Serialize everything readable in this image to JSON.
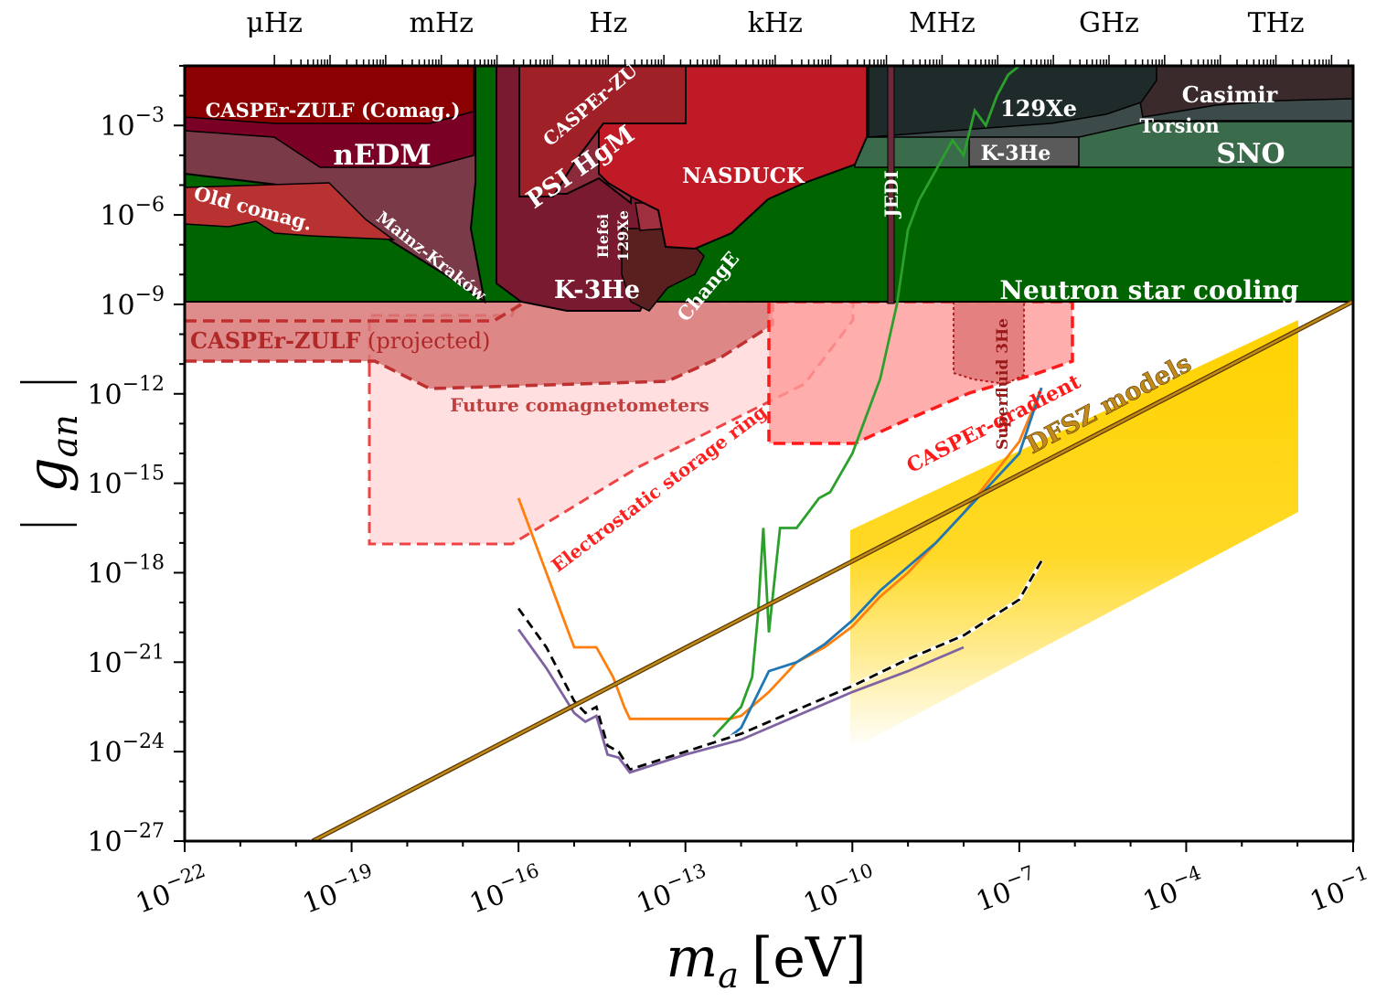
{
  "chart_data": {
    "type": "line",
    "xlabel_var": "m",
    "xlabel_sub": "a",
    "xlabel_unit": "[eV]",
    "ylabel_var": "g",
    "ylabel_sub": "an",
    "x_scale": "log",
    "y_scale": "log",
    "xlim": [
      1e-22,
      0.1
    ],
    "ylim": [
      1e-27,
      0.1
    ],
    "x_tick_exponents": [
      "−22",
      "−19",
      "−16",
      "−13",
      "−10",
      "−7",
      "−4",
      "−1"
    ],
    "y_tick_exponents": [
      "−3",
      "−6",
      "−9",
      "−12",
      "−15",
      "−18",
      "−21",
      "−24",
      "−27"
    ],
    "top_axis_labels": [
      {
        "text": "μHz",
        "mass_eV": 4.1e-21
      },
      {
        "text": "mHz",
        "mass_eV": 4.1e-18
      },
      {
        "text": "Hz",
        "mass_eV": 4.1e-15
      },
      {
        "text": "kHz",
        "mass_eV": 4.1e-12
      },
      {
        "text": "MHz",
        "mass_eV": 4.1e-09
      },
      {
        "text": "GHz",
        "mass_eV": 4.1e-06
      },
      {
        "text": "THz",
        "mass_eV": 0.0041
      }
    ],
    "regions": [
      {
        "label": "Neutron star cooling",
        "type": "excluded",
        "color": "#006400"
      },
      {
        "label": "SNO",
        "type": "excluded",
        "color": "#3a6b4a"
      },
      {
        "label": "Torsion",
        "type": "excluded",
        "color": "#3d4a4a"
      },
      {
        "label": "Casimir",
        "type": "excluded",
        "color": "#3a2a2c"
      },
      {
        "label": "129Xe",
        "type": "excluded",
        "color": "#1f2a2a"
      },
      {
        "label": "K-3He",
        "type": "excluded",
        "color": "#555555"
      },
      {
        "label": "JEDI",
        "type": "excluded",
        "color": "#6b2a3a"
      },
      {
        "label": "NASDUCK",
        "type": "excluded",
        "color": "#c01a26"
      },
      {
        "label": "CASPEr-ZULF",
        "type": "excluded",
        "color": "#a02028"
      },
      {
        "label": "PSI HgM",
        "type": "excluded",
        "color": "#8a2a3a"
      },
      {
        "label": "Hefei 129Xe",
        "type": "excluded",
        "color": "#a03040"
      },
      {
        "label": "K-3He",
        "type": "excluded",
        "color": "#7a1a30"
      },
      {
        "label": "ChangE",
        "type": "excluded",
        "color": "#5a2020"
      },
      {
        "label": "CASPEr-ZULF (Comag.)",
        "type": "excluded",
        "color": "#8b0000"
      },
      {
        "label": "nEDM",
        "type": "excluded",
        "color": "#7a0026"
      },
      {
        "label": "Old comag.",
        "type": "excluded",
        "color": "#b83232"
      },
      {
        "label": "Mainz-Kraków",
        "type": "excluded",
        "color": "#7a3a48"
      },
      {
        "label": "CASPEr-ZULF (projected)",
        "type": "projected",
        "color": "#c84040"
      },
      {
        "label": "Future comagnetometers",
        "type": "projected",
        "color": "#e85050"
      },
      {
        "label": "Electrostatic storage ring",
        "type": "projected",
        "color": "#ff4040"
      },
      {
        "label": "CASPEr-gradient",
        "type": "projected",
        "color": "#ff2020"
      },
      {
        "label": "Superfluid 3He",
        "type": "projected",
        "color": "#c03030"
      },
      {
        "label": "DFSZ models",
        "type": "theory",
        "color": "#ffd200"
      }
    ],
    "text_labels": {
      "caszulf_comag": "CASPEr-ZULF (Comag.)",
      "nedm": "nEDM",
      "old_comag": "Old comag.",
      "mainz": "Mainz-Kraków",
      "caszulf_short": "CASPEr-ZU",
      "psi": "PSI HgM",
      "hefei_1": "Hefei",
      "hefei_2": "129Xe",
      "k3he_left": "K-3He",
      "change": "ChangE",
      "nasduck": "NASDUCK",
      "jedi": "JEDI",
      "xe129": "129Xe",
      "k3he_right": "K-3He",
      "casimir": "Casimir",
      "torsion": "Torsion",
      "sno": "SNO",
      "nsc": "Neutron star cooling",
      "caszulf_proj_bold": "CASPEr-ZULF",
      "caszulf_proj_rest": "(projected)",
      "future": "Future comagnetometers",
      "esr": "Electrostatic storage ring",
      "casgrad": "CASPEr-gradient",
      "superfluid": "Superfluid 3He",
      "dfsz": "DFSZ models"
    },
    "series": [
      {
        "color": "#ff7f0e",
        "x_log10": [
          -16.0,
          -15.5,
          -15.2,
          -15.0,
          -14.6,
          -14.3,
          -14.1,
          -14.0,
          -13.5,
          -12.5,
          -12.2,
          -12.0,
          -11.5,
          -11.0,
          -10.5,
          -10.0,
          -9.5,
          -9.0,
          -8.5,
          -8.0,
          -7.5,
          -7.0,
          -6.6
        ],
        "y_log10": [
          -15.5,
          -18.0,
          -19.5,
          -20.5,
          -20.5,
          -21.5,
          -22.5,
          -22.9,
          -22.9,
          -22.9,
          -22.9,
          -22.8,
          -22.0,
          -21.0,
          -20.5,
          -19.8,
          -18.8,
          -18.0,
          -17.0,
          -16.0,
          -14.8,
          -13.6,
          -11.8
        ]
      },
      {
        "color": "#1f77b4",
        "x_log10": [
          -12.2,
          -12.0,
          -11.5,
          -11.0,
          -10.5,
          -10.0,
          -9.5,
          -9.0,
          -8.5,
          -8.0,
          -7.5,
          -7.0,
          -6.6
        ],
        "y_log10": [
          -23.5,
          -23.2,
          -21.3,
          -21.0,
          -20.4,
          -19.6,
          -18.6,
          -17.8,
          -17.0,
          -16.0,
          -15.0,
          -14.0,
          -11.8
        ]
      },
      {
        "color": "#2ca02c",
        "x_log10": [
          -12.5,
          -12.0,
          -11.8,
          -11.7,
          -11.6,
          -11.5,
          -11.3,
          -11.0,
          -10.6,
          -10.4,
          -10.0,
          -9.6,
          -9.5,
          -9.2,
          -9.0,
          -8.8,
          -8.5,
          -8.2,
          -8.0,
          -7.8,
          -7.6,
          -7.4,
          -7.2,
          -7.0
        ],
        "y_log10": [
          -23.5,
          -22.5,
          -21.5,
          -19.5,
          -16.5,
          -20.0,
          -16.5,
          -16.5,
          -15.5,
          -15.3,
          -14.0,
          -12.0,
          -11.5,
          -9.0,
          -6.5,
          -5.5,
          -4.5,
          -3.5,
          -4.0,
          -2.5,
          -3.0,
          -2.0,
          -1.3,
          -1.0
        ]
      },
      {
        "color": "#000000",
        "dashed": true,
        "x_log10": [
          -16.0,
          -15.5,
          -15.0,
          -14.8,
          -14.6,
          -14.4,
          -14.2,
          -14.0,
          -13.5,
          -13.0,
          -12.0,
          -11.0,
          -10.0,
          -9.0,
          -8.0,
          -7.0,
          -6.6
        ],
        "y_log10": [
          -19.2,
          -20.5,
          -22.3,
          -22.7,
          -22.5,
          -23.8,
          -24.0,
          -24.6,
          -24.3,
          -24.0,
          -23.4,
          -22.6,
          -21.8,
          -20.9,
          -20.1,
          -18.9,
          -17.6
        ]
      },
      {
        "color": "#8064a2",
        "x_log10": [
          -16.0,
          -15.5,
          -15.0,
          -14.8,
          -14.6,
          -14.4,
          -14.2,
          -14.0,
          -13.5,
          -13.0,
          -12.0,
          -11.0,
          -10.0,
          -9.0,
          -8.0
        ],
        "y_log10": [
          -19.9,
          -21.2,
          -22.7,
          -23.0,
          -22.8,
          -24.1,
          -24.2,
          -24.7,
          -24.4,
          -24.1,
          -23.6,
          -22.8,
          -22.0,
          -21.3,
          -20.5
        ]
      },
      {
        "color": "#c28a1a",
        "x_log10": [
          -19.7,
          -1.0
        ],
        "y_log10": [
          -27.0,
          -8.9
        ]
      }
    ]
  }
}
